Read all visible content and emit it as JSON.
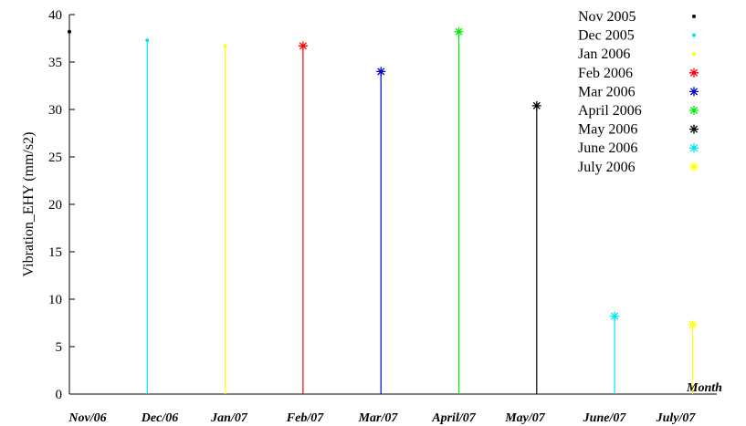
{
  "chart_data": {
    "type": "stem",
    "ylabel": "Vibration_EHY (mm/s2)",
    "xlabel": "Month",
    "ylim": [
      0,
      40
    ],
    "yticks": [
      0,
      5,
      10,
      15,
      20,
      25,
      30,
      35,
      40
    ],
    "categories": [
      "Nov/06",
      "Dec/06",
      "Jan/07",
      "Feb/07",
      "Mar/07",
      "April/07",
      "May/07",
      "June/07",
      "July/07"
    ],
    "series": [
      {
        "name": "Nov 2005",
        "category": "Nov/06",
        "value": 38.2,
        "color": "#000000",
        "marker": "dot"
      },
      {
        "name": "Dec 2005",
        "category": "Dec/06",
        "value": 37.3,
        "color": "#00e5ee",
        "marker": "dot"
      },
      {
        "name": "Jan  2006",
        "category": "Jan/07",
        "value": 36.7,
        "color": "#ffff00",
        "marker": "dot"
      },
      {
        "name": "Feb  2006",
        "category": "Feb/07",
        "value": 36.7,
        "color": "#ff0000",
        "marker": "star"
      },
      {
        "name": "Mar 2006",
        "category": "Mar/07",
        "value": 34.0,
        "color": "#0000cc",
        "marker": "star"
      },
      {
        "name": "April 2006",
        "category": "April/07",
        "value": 38.2,
        "color": "#00ee00",
        "marker": "star"
      },
      {
        "name": "May 2006",
        "category": "May/07",
        "value": 30.4,
        "color": "#000000",
        "marker": "star"
      },
      {
        "name": "June 2006",
        "category": "June/07",
        "value": 8.2,
        "color": "#00e5ee",
        "marker": "star"
      },
      {
        "name": "July  2006",
        "category": "July/07",
        "value": 7.3,
        "color": "#ffff00",
        "marker": "star"
      }
    ],
    "legend_position": "top-right",
    "grid": false
  }
}
